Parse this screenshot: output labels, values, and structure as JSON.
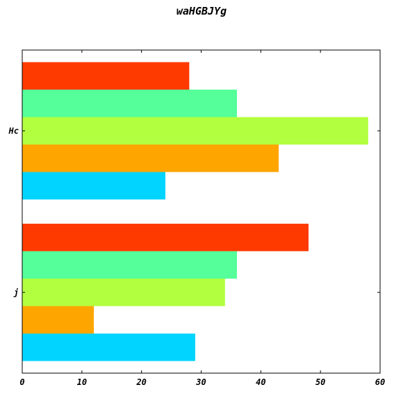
{
  "chart_data": {
    "type": "bar",
    "orientation": "horizontal",
    "title": "waHGBJYg",
    "xlabel": "",
    "ylabel": "",
    "categories": [
      "j",
      "Hc"
    ],
    "series": [
      {
        "color": "#00d4ff",
        "values": [
          29,
          24
        ]
      },
      {
        "color": "#ffa500",
        "values": [
          12,
          43
        ]
      },
      {
        "color": "#b2ff3f",
        "values": [
          34,
          58
        ]
      },
      {
        "color": "#55ff99",
        "values": [
          36,
          36
        ]
      },
      {
        "color": "#ff3a00",
        "values": [
          48,
          28
        ]
      }
    ],
    "xlim": [
      0,
      60
    ],
    "xticks": [
      0,
      10,
      20,
      30,
      40,
      50,
      60
    ],
    "grid": false,
    "legend": "none"
  }
}
